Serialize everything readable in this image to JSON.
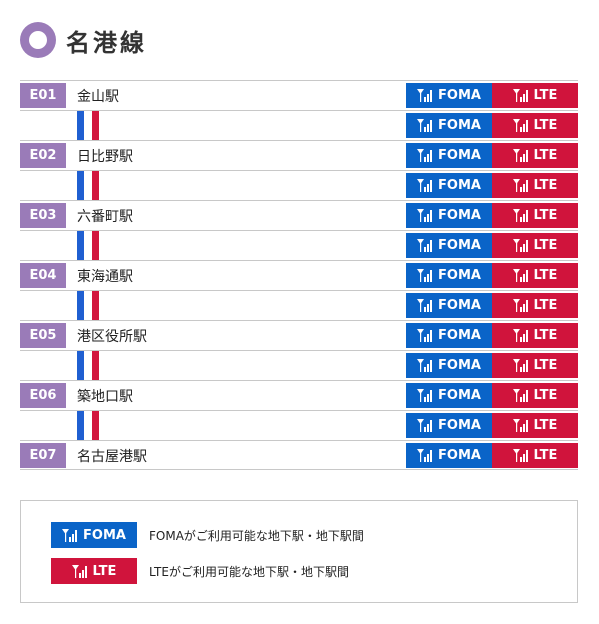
{
  "title": "名港線",
  "colors": {
    "purple": "#9a7bb8",
    "foma_blue": "#0a64c8",
    "lte_red": "#d0143c",
    "line_blue": "#1f5fd1",
    "line_red": "#d2153d"
  },
  "badges": {
    "foma": "FOMA",
    "lte": "LTE"
  },
  "stations": [
    {
      "code": "E01",
      "name": "金山駅"
    },
    {
      "code": "E02",
      "name": "日比野駅"
    },
    {
      "code": "E03",
      "name": "六番町駅"
    },
    {
      "code": "E04",
      "name": "東海通駅"
    },
    {
      "code": "E05",
      "name": "港区役所駅"
    },
    {
      "code": "E06",
      "name": "築地口駅"
    },
    {
      "code": "E07",
      "name": "名古屋港駅"
    }
  ],
  "legend": {
    "foma_text": "FOMAがご利用可能な地下駅・地下駅間",
    "lte_text": "LTEがご利用可能な地下駅・地下駅間"
  }
}
